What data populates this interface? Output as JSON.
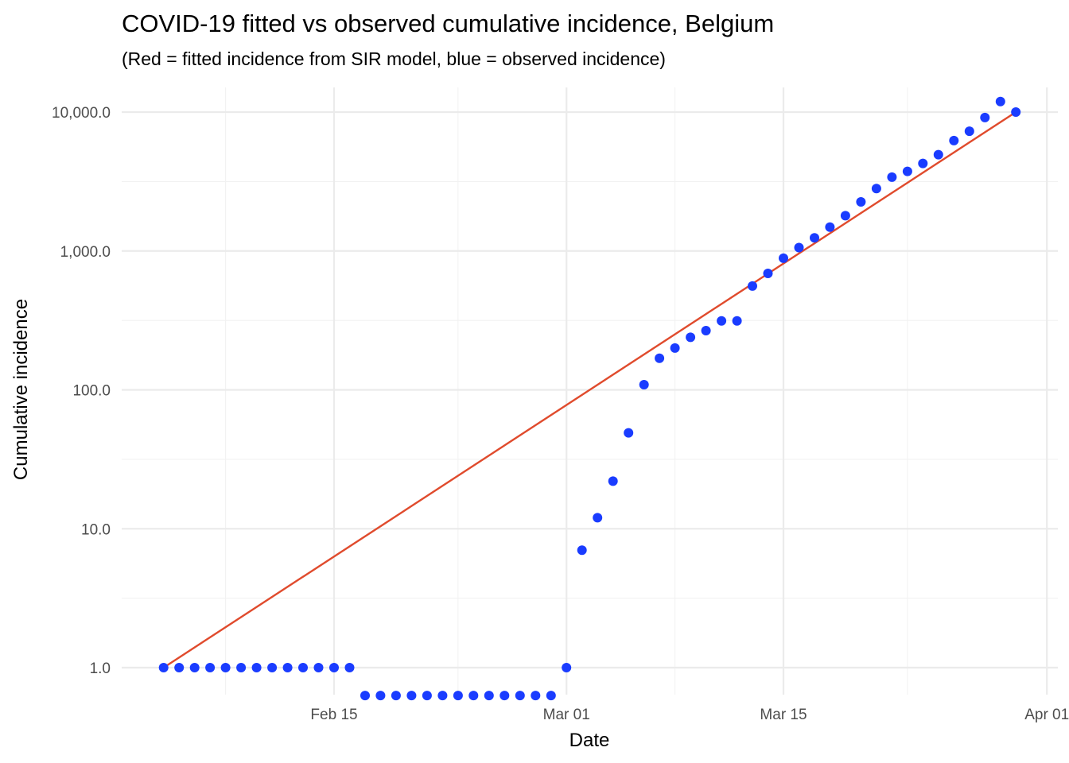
{
  "chart_data": {
    "type": "scatter",
    "title": "COVID-19 fitted vs observed cumulative incidence, Belgium",
    "subtitle": "(Red = fitted incidence from SIR model, blue = observed incidence)",
    "xlabel": "Date",
    "ylabel": "Cumulative incidence",
    "x_scale": "date",
    "y_scale": "log10",
    "xlim": [
      "2020-02-01",
      "2020-04-01"
    ],
    "ylim": [
      0.63,
      14000
    ],
    "grid": true,
    "legend": "none",
    "x_ticks": [
      {
        "date": "2020-02-15",
        "label": "Feb 15"
      },
      {
        "date": "2020-03-01",
        "label": "Mar 01"
      },
      {
        "date": "2020-03-15",
        "label": "Mar 15"
      },
      {
        "date": "2020-04-01",
        "label": "Apr 01"
      }
    ],
    "x_minor_ticks": [
      "2020-02-08",
      "2020-02-23",
      "2020-03-08",
      "2020-03-23"
    ],
    "y_ticks": [
      {
        "value": 1,
        "label": "1.0"
      },
      {
        "value": 10,
        "label": "10.0"
      },
      {
        "value": 100,
        "label": "100.0"
      },
      {
        "value": 1000,
        "label": "1,000.0"
      },
      {
        "value": 10000,
        "label": "10,000.0"
      }
    ],
    "y_minor_ticks": [
      3.16,
      31.6,
      316,
      3160
    ],
    "series": [
      {
        "name": "Observed incidence",
        "mark": "point",
        "color": "#1a3cff",
        "dates": [
          "2020-02-04",
          "2020-02-05",
          "2020-02-06",
          "2020-02-07",
          "2020-02-08",
          "2020-02-09",
          "2020-02-10",
          "2020-02-11",
          "2020-02-12",
          "2020-02-13",
          "2020-02-14",
          "2020-02-15",
          "2020-02-16",
          "2020-02-17",
          "2020-02-18",
          "2020-02-19",
          "2020-02-20",
          "2020-02-21",
          "2020-02-22",
          "2020-02-23",
          "2020-02-24",
          "2020-02-25",
          "2020-02-26",
          "2020-02-27",
          "2020-02-28",
          "2020-02-29",
          "2020-03-01",
          "2020-03-02",
          "2020-03-03",
          "2020-03-04",
          "2020-03-05",
          "2020-03-06",
          "2020-03-07",
          "2020-03-08",
          "2020-03-09",
          "2020-03-10",
          "2020-03-11",
          "2020-03-12",
          "2020-03-13",
          "2020-03-14",
          "2020-03-15",
          "2020-03-16",
          "2020-03-17",
          "2020-03-18",
          "2020-03-19",
          "2020-03-20",
          "2020-03-21",
          "2020-03-22",
          "2020-03-23",
          "2020-03-24",
          "2020-03-25",
          "2020-03-26",
          "2020-03-27",
          "2020-03-28",
          "2020-03-29",
          "2020-03-30"
        ],
        "values": [
          1,
          1,
          1,
          1,
          1,
          1,
          1,
          1,
          1,
          1,
          1,
          1,
          1,
          0.63,
          0.63,
          0.63,
          0.63,
          0.63,
          0.63,
          0.63,
          0.63,
          0.63,
          0.63,
          0.63,
          0.63,
          0.63,
          1,
          7,
          12,
          22,
          49,
          109,
          169,
          200,
          239,
          267,
          314,
          314,
          559,
          689,
          886,
          1058,
          1243,
          1486,
          1795,
          2257,
          2815,
          3401,
          3743,
          4269,
          4937,
          6235,
          7284,
          9134,
          11899,
          10000
        ]
      },
      {
        "name": "Fitted incidence",
        "mark": "line",
        "color": "#e04b2d",
        "dates": [
          "2020-02-04",
          "2020-03-30"
        ],
        "values": [
          1,
          10000
        ]
      }
    ]
  }
}
